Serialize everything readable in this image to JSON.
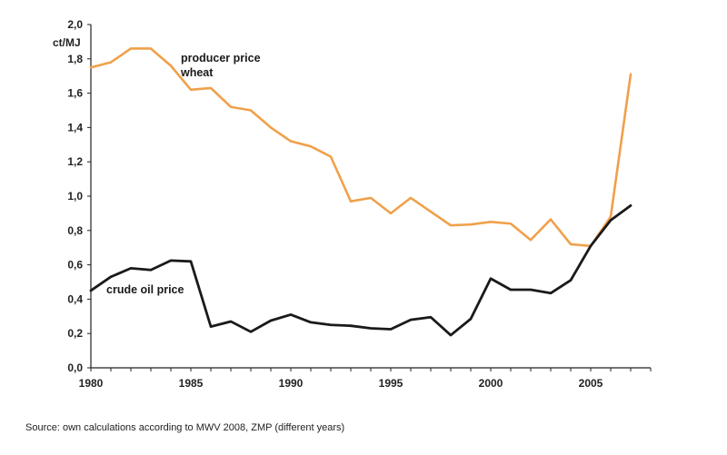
{
  "chart_data": {
    "type": "line",
    "ylabel": "ct/MJ",
    "x": [
      1980,
      1981,
      1982,
      1983,
      1984,
      1985,
      1986,
      1987,
      1988,
      1989,
      1990,
      1991,
      1992,
      1993,
      1994,
      1995,
      1996,
      1997,
      1998,
      1999,
      2000,
      2001,
      2002,
      2003,
      2004,
      2005,
      2006,
      2007
    ],
    "xticks": [
      1980,
      1985,
      1990,
      1995,
      2000,
      2005
    ],
    "xlim": [
      1980,
      2008
    ],
    "ylim": [
      0,
      2.0
    ],
    "yticks": [
      "0,0",
      "0,2",
      "0,4",
      "0,6",
      "0,8",
      "1,0",
      "1,2",
      "1,4",
      "1,6",
      "1,8",
      "2,0"
    ],
    "grid": false,
    "series": [
      {
        "name_lines": [
          "producer price",
          "wheat"
        ],
        "color": "#F0A04B",
        "values": [
          1.75,
          1.78,
          1.86,
          1.86,
          1.76,
          1.62,
          1.63,
          1.52,
          1.5,
          1.4,
          1.32,
          1.29,
          1.23,
          0.97,
          0.99,
          0.9,
          0.99,
          0.91,
          0.83,
          0.835,
          0.85,
          0.84,
          0.745,
          0.865,
          0.72,
          0.71,
          0.88,
          1.71
        ]
      },
      {
        "name_lines": [
          "crude oil price"
        ],
        "color": "#1a1a1a",
        "values": [
          0.45,
          0.53,
          0.58,
          0.57,
          0.625,
          0.62,
          0.24,
          0.27,
          0.21,
          0.275,
          0.31,
          0.265,
          0.25,
          0.245,
          0.23,
          0.225,
          0.28,
          0.295,
          0.19,
          0.285,
          0.52,
          0.455,
          0.455,
          0.435,
          0.51,
          0.71,
          0.86,
          0.945
        ]
      }
    ]
  },
  "source": "Source: own calculations according to MWV 2008, ZMP (different years)"
}
